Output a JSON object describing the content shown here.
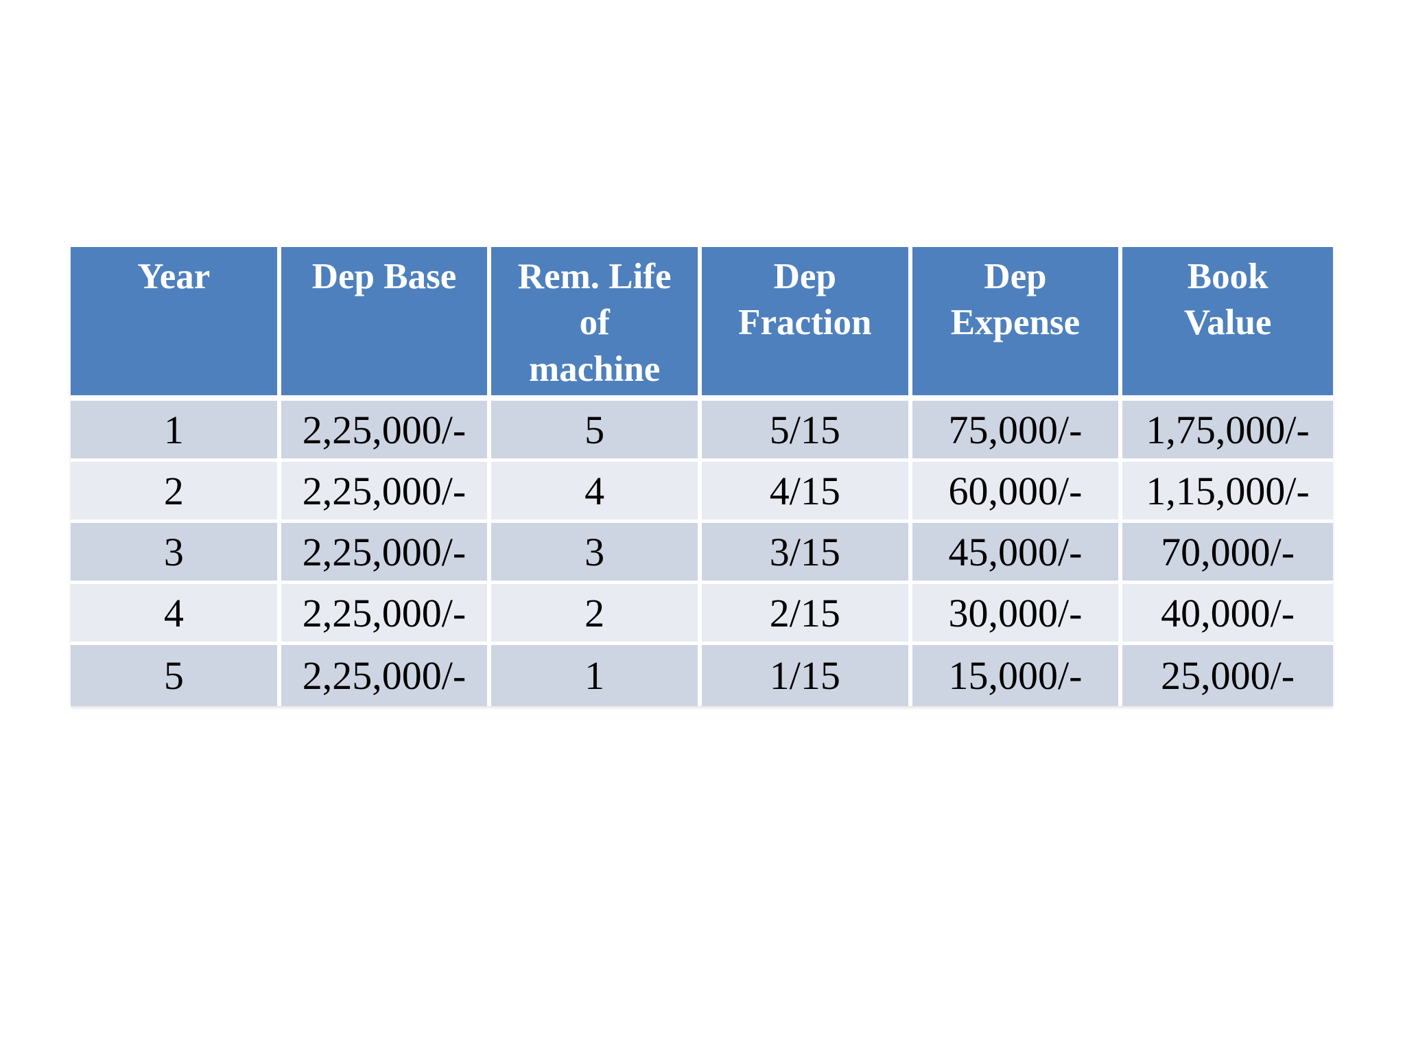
{
  "page": {
    "background": "#ffffff"
  },
  "colors": {
    "header_bg": "#4E80BD",
    "header_text": "#ffffff",
    "row_dark": "#CDD4E2",
    "row_light": "#E8EBF2",
    "body_text": "#000000",
    "grid": "#ffffff"
  },
  "chart_data": {
    "type": "table",
    "columns": [
      "Year",
      "Dep Base",
      "Rem. Life\nof\nmachine",
      "Dep\nFraction",
      "Dep\nExpense",
      "Book\nValue"
    ],
    "rows": [
      [
        "1",
        "2,25,000/-",
        "5",
        "5/15",
        "75,000/-",
        "1,75,000/-"
      ],
      [
        "2",
        "2,25,000/-",
        "4",
        "4/15",
        "60,000/-",
        "1,15,000/-"
      ],
      [
        "3",
        "2,25,000/-",
        "3",
        "3/15",
        "45,000/-",
        "70,000/-"
      ],
      [
        "4",
        "2,25,000/-",
        "2",
        "2/15",
        "30,000/-",
        "40,000/-"
      ],
      [
        "5",
        "2,25,000/-",
        "1",
        "1/15",
        "15,000/-",
        "25,000/-"
      ]
    ]
  }
}
